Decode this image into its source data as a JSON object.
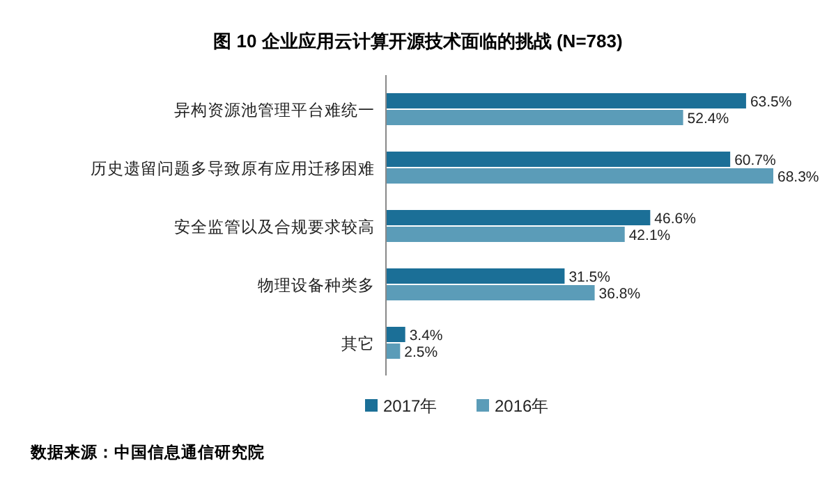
{
  "chart_data": {
    "type": "bar",
    "orientation": "horizontal",
    "title": "图 10 企业应用云计算开源技术面临的挑战 (N=783)",
    "categories": [
      "异构资源池管理平台难统一",
      "历史遗留问题多导致原有应用迁移困难",
      "安全监管以及合规要求较高",
      "物理设备种类多",
      "其它"
    ],
    "series": [
      {
        "name": "2017年",
        "color": "#1b6f97",
        "values": [
          63.5,
          60.7,
          46.6,
          31.5,
          3.4
        ],
        "value_labels": [
          "63.5%",
          "60.7%",
          "46.6%",
          "31.5%",
          "3.4%"
        ]
      },
      {
        "name": "2016年",
        "color": "#5b9cb8",
        "values": [
          52.4,
          68.3,
          42.1,
          36.8,
          2.5
        ],
        "value_labels": [
          "52.4%",
          "68.3%",
          "42.1%",
          "36.8%",
          "2.5%"
        ]
      }
    ],
    "legend": "bottom",
    "annotations": [
      "数据来源：中国信息通信研究院"
    ]
  }
}
